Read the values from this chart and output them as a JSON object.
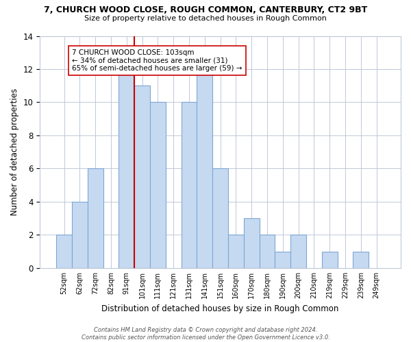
{
  "title": "7, CHURCH WOOD CLOSE, ROUGH COMMON, CANTERBURY, CT2 9BT",
  "subtitle": "Size of property relative to detached houses in Rough Common",
  "xlabel": "Distribution of detached houses by size in Rough Common",
  "ylabel": "Number of detached properties",
  "bar_labels": [
    "52sqm",
    "62sqm",
    "72sqm",
    "82sqm",
    "91sqm",
    "101sqm",
    "111sqm",
    "121sqm",
    "131sqm",
    "141sqm",
    "151sqm",
    "160sqm",
    "170sqm",
    "180sqm",
    "190sqm",
    "200sqm",
    "210sqm",
    "219sqm",
    "229sqm",
    "239sqm",
    "249sqm"
  ],
  "bar_values": [
    2,
    4,
    6,
    0,
    12,
    11,
    10,
    0,
    10,
    12,
    6,
    2,
    3,
    2,
    1,
    2,
    0,
    1,
    0,
    1,
    0
  ],
  "bar_color": "#c5d9f1",
  "bar_edge_color": "#7da6d4",
  "reference_line_x": 4.5,
  "reference_line_color": "#cc0000",
  "annotation_text": "7 CHURCH WOOD CLOSE: 103sqm\n← 34% of detached houses are smaller (31)\n65% of semi-detached houses are larger (59) →",
  "annotation_box_color": "#ffffff",
  "annotation_box_edge_color": "#cc0000",
  "ylim": [
    0,
    14
  ],
  "yticks": [
    0,
    2,
    4,
    6,
    8,
    10,
    12,
    14
  ],
  "footer_text": "Contains HM Land Registry data © Crown copyright and database right 2024.\nContains public sector information licensed under the Open Government Licence v3.0.",
  "bg_color": "#ffffff",
  "grid_color": "#c0c8d8"
}
